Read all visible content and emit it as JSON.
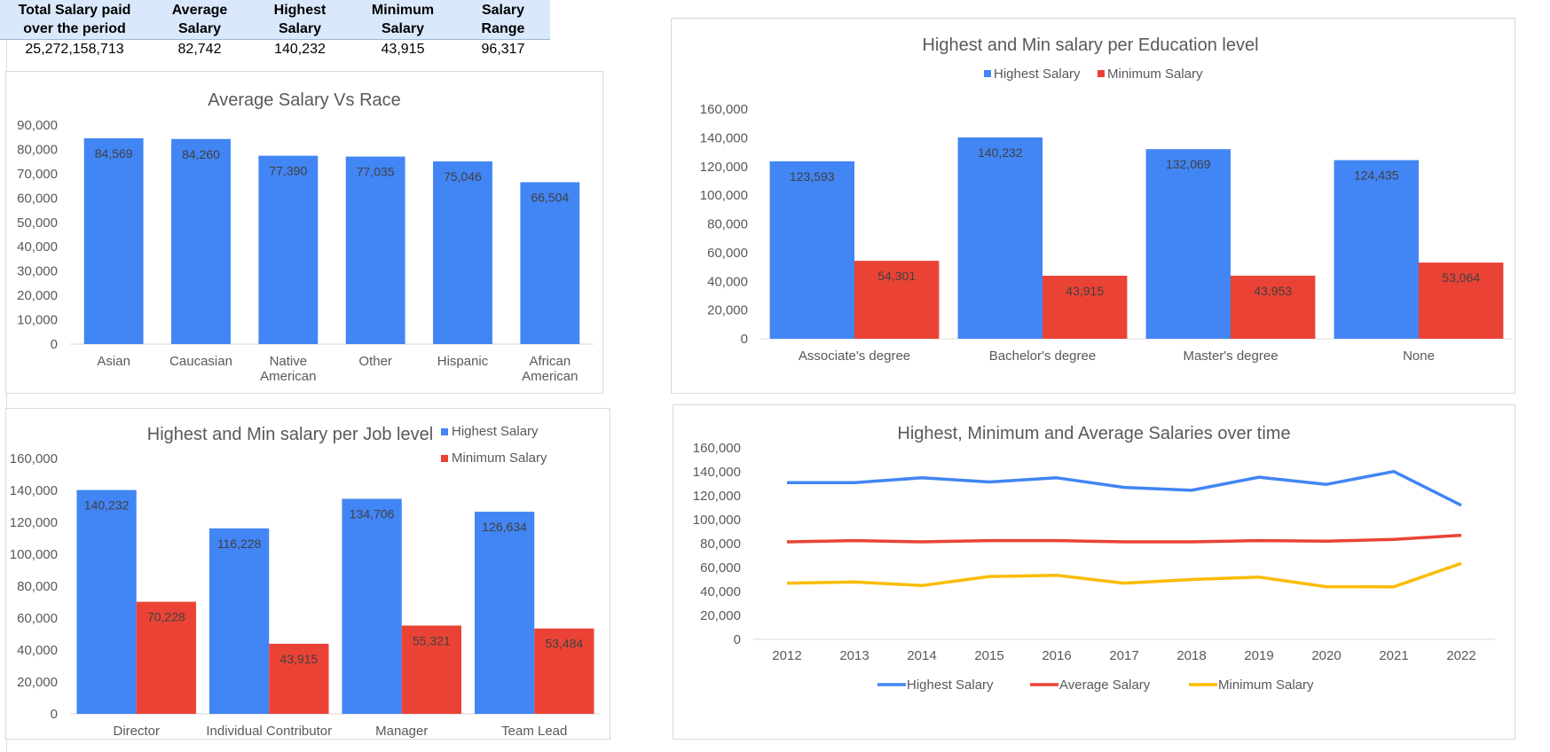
{
  "summary": {
    "headers": [
      "Total Salary paid over the period",
      "Average Salary",
      "Highest Salary",
      "Minimum Salary",
      "Salary Range"
    ],
    "values": [
      "25,272,158,713",
      "82,742",
      "140,232",
      "43,915",
      "96,317"
    ]
  },
  "colors": {
    "highest": "#4285f4",
    "minimum": "#ea4335",
    "average": "#ea4335",
    "min_line": "#fbbc04"
  },
  "chart_data": [
    {
      "id": "race",
      "type": "bar",
      "title": "Average Salary Vs Race",
      "categories": [
        "Asian",
        "Caucasian",
        "Native American",
        "Other",
        "Hispanic",
        "African American"
      ],
      "category_lines": [
        [
          "Asian"
        ],
        [
          "Caucasian"
        ],
        [
          "Native",
          "American"
        ],
        [
          "Other"
        ],
        [
          "Hispanic"
        ],
        [
          "African",
          "American"
        ]
      ],
      "series": [
        {
          "name": "",
          "values": [
            84569,
            84260,
            77390,
            77035,
            75046,
            66504
          ],
          "labels": [
            "84,569",
            "84,260",
            "77,390",
            "77,035",
            "75,046",
            "66,504"
          ]
        }
      ],
      "yticks": [
        "0",
        "10,000",
        "20,000",
        "30,000",
        "40,000",
        "50,000",
        "60,000",
        "70,000",
        "80,000",
        "90,000"
      ],
      "ylim": [
        0,
        90000
      ],
      "legend": "none"
    },
    {
      "id": "education",
      "type": "bar",
      "title": "Highest and Min salary per Education level",
      "categories": [
        "Associate's degree",
        "Bachelor's degree",
        "Master's degree",
        "None"
      ],
      "category_lines": [
        [
          "Associate's degree"
        ],
        [
          "Bachelor's degree"
        ],
        [
          "Master's degree"
        ],
        [
          "None"
        ]
      ],
      "series": [
        {
          "name": "Highest Salary",
          "values": [
            123593,
            140232,
            132069,
            124435
          ],
          "labels": [
            "123,593",
            "140,232",
            "132,069",
            "124,435"
          ]
        },
        {
          "name": "Minimum Salary",
          "values": [
            54301,
            43915,
            43953,
            53064
          ],
          "labels": [
            "54,301",
            "43,915",
            "43,953",
            "53,064"
          ]
        }
      ],
      "yticks": [
        "0",
        "20,000",
        "40,000",
        "60,000",
        "80,000",
        "100,000",
        "120,000",
        "140,000",
        "160,000"
      ],
      "ylim": [
        0,
        160000
      ],
      "legend": "top"
    },
    {
      "id": "joblevel",
      "type": "bar",
      "title": "Highest and Min salary per Job level",
      "categories": [
        "Director",
        "Individual Contributor",
        "Manager",
        "Team Lead"
      ],
      "category_lines": [
        [
          "Director"
        ],
        [
          "Individual Contributor"
        ],
        [
          "Manager"
        ],
        [
          "Team Lead"
        ]
      ],
      "series": [
        {
          "name": "Highest Salary",
          "values": [
            140232,
            116228,
            134706,
            126634
          ],
          "labels": [
            "140,232",
            "116,228",
            "134,706",
            "126,634"
          ]
        },
        {
          "name": "Minimum Salary",
          "values": [
            70228,
            43915,
            55321,
            53484
          ],
          "labels": [
            "70,228",
            "43,915",
            "55,321",
            "53,484"
          ]
        }
      ],
      "yticks": [
        "0",
        "20,000",
        "40,000",
        "60,000",
        "80,000",
        "100,000",
        "120,000",
        "140,000",
        "160,000"
      ],
      "ylim": [
        0,
        160000
      ],
      "legend": "top-right"
    },
    {
      "id": "time",
      "type": "line",
      "title": "Highest, Minimum and Average Salaries over time",
      "x": [
        "2012",
        "2013",
        "2014",
        "2015",
        "2016",
        "2017",
        "2018",
        "2019",
        "2020",
        "2021",
        "2022"
      ],
      "series": [
        {
          "name": "Highest Salary",
          "values": [
            131000,
            131000,
            135000,
            131500,
            135000,
            127000,
            124500,
            135500,
            129500,
            140232,
            112000
          ]
        },
        {
          "name": "Average Salary",
          "values": [
            81500,
            82500,
            81500,
            82500,
            82500,
            81500,
            81500,
            82500,
            82000,
            83500,
            87000
          ]
        },
        {
          "name": "Minimum Salary",
          "values": [
            47000,
            48000,
            45000,
            52500,
            53500,
            47000,
            50000,
            52000,
            44000,
            43915,
            63500
          ]
        }
      ],
      "yticks": [
        "0",
        "20,000",
        "40,000",
        "60,000",
        "80,000",
        "100,000",
        "120,000",
        "140,000",
        "160,000"
      ],
      "ylim": [
        0,
        160000
      ],
      "legend": "bottom"
    }
  ]
}
